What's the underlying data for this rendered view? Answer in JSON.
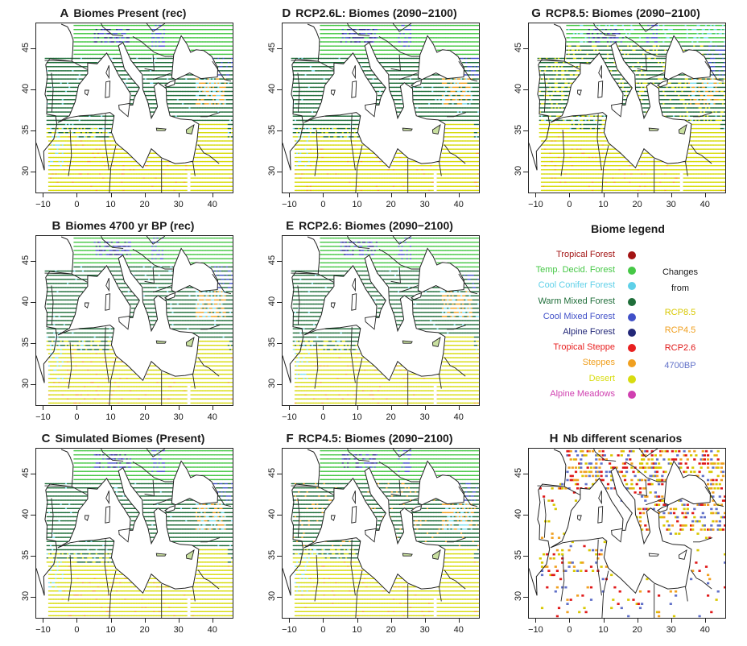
{
  "panels": [
    {
      "letter": "A",
      "title": "Biomes Present (rec)"
    },
    {
      "letter": "D",
      "title": "RCP2.6L: Biomes (2090−2100)"
    },
    {
      "letter": "G",
      "title": "RCP8.5: Biomes (2090−2100)"
    },
    {
      "letter": "B",
      "title": "Biomes 4700 yr BP (rec)"
    },
    {
      "letter": "E",
      "title": "RCP2.6: Biomes (2090−2100)"
    },
    {
      "letter": "C",
      "title": "Simulated Biomes (Present)"
    },
    {
      "letter": "F",
      "title": "RCP4.5: Biomes (2090−2100)"
    },
    {
      "letter": "H",
      "title": "Nb different scenarios"
    }
  ],
  "axes": {
    "x_ticks": [
      "−10",
      "0",
      "10",
      "20",
      "30",
      "40"
    ],
    "y_ticks": [
      "45",
      "40",
      "35",
      "30"
    ]
  },
  "legend": {
    "title": "Biome legend",
    "biomes": [
      {
        "label": "Tropical Forest",
        "color": "#a31414"
      },
      {
        "label": "Temp. Decid. Forest",
        "color": "#46c846"
      },
      {
        "label": "Cool Conifer Forest",
        "color": "#5fd0e8"
      },
      {
        "label": "Warm Mixed Forest",
        "color": "#1f6e3a"
      },
      {
        "label": "Cool Mixed Forest",
        "color": "#4050c8"
      },
      {
        "label": "Alpine Forest",
        "color": "#232878"
      },
      {
        "label": "Tropical Steppe",
        "color": "#e82020"
      },
      {
        "label": "Steppes",
        "color": "#f0a020"
      },
      {
        "label": "Desert",
        "color": "#d8dc10"
      },
      {
        "label": "Alpine Meadows",
        "color": "#d040b0"
      }
    ],
    "changes_title_1": "Changes",
    "changes_title_2": "from",
    "changes": [
      {
        "label": "RCP8.5",
        "color": "#d8c800"
      },
      {
        "label": "RCP4.5",
        "color": "#f0a020"
      },
      {
        "label": "RCP2.6",
        "color": "#e01818"
      },
      {
        "label": "4700BP",
        "color": "#6070c8"
      }
    ]
  }
}
